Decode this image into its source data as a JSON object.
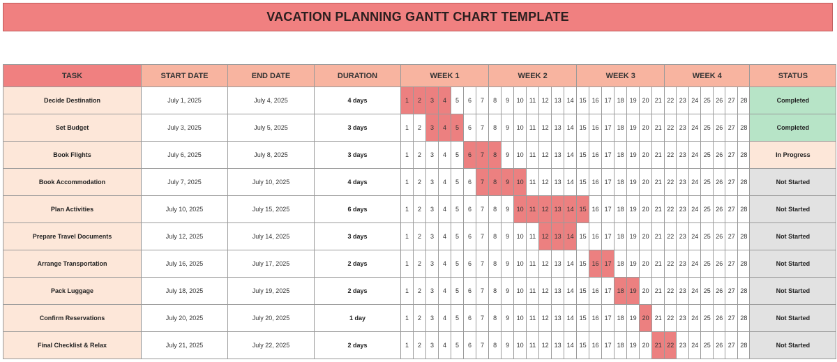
{
  "title": "VACATION PLANNING GANTT CHART TEMPLATE",
  "headers": {
    "task": "TASK",
    "start": "START DATE",
    "end": "END DATE",
    "duration": "DURATION",
    "weeks": [
      "WEEK 1",
      "WEEK 2",
      "WEEK 3",
      "WEEK 4"
    ],
    "status": "STATUS"
  },
  "colors": {
    "title_bg": "#f08080",
    "header_bg": "#f8b4a0",
    "bar": "#ec8080",
    "task_bg": "#fde7d9",
    "completed": "#b7e4c7",
    "in_progress": "#fde7d9",
    "not_started": "#e2e2e2"
  },
  "chart_data": {
    "type": "table",
    "title": "VACATION PLANNING GANTT CHART TEMPLATE",
    "days": [
      "1",
      "2",
      "3",
      "4",
      "5",
      "6",
      "7",
      "8",
      "9",
      "10",
      "11",
      "12",
      "13",
      "14",
      "15",
      "16",
      "17",
      "18",
      "19",
      "20",
      "21",
      "22",
      "23",
      "24",
      "25",
      "26",
      "27",
      "28"
    ],
    "tasks": [
      {
        "task": "Decide Destination",
        "start": "July 1, 2025",
        "end": "July 4, 2025",
        "duration": "4 days",
        "status": "Completed",
        "start_day": 1,
        "end_day": 4
      },
      {
        "task": "Set Budget",
        "start": "July 3, 2025",
        "end": "July 5, 2025",
        "duration": "3 days",
        "status": "Completed",
        "start_day": 3,
        "end_day": 5
      },
      {
        "task": "Book Flights",
        "start": "July 6, 2025",
        "end": "July 8, 2025",
        "duration": "3 days",
        "status": "In Progress",
        "start_day": 6,
        "end_day": 8
      },
      {
        "task": "Book Accommodation",
        "start": "July 7, 2025",
        "end": "July 10, 2025",
        "duration": "4 days",
        "status": "Not Started",
        "start_day": 7,
        "end_day": 10
      },
      {
        "task": "Plan Activities",
        "start": "July 10, 2025",
        "end": "July 15, 2025",
        "duration": "6 days",
        "status": "Not Started",
        "start_day": 10,
        "end_day": 15
      },
      {
        "task": "Prepare Travel Documents",
        "start": "July 12, 2025",
        "end": "July 14, 2025",
        "duration": "3 days",
        "status": "Not Started",
        "start_day": 12,
        "end_day": 14
      },
      {
        "task": "Arrange Transportation",
        "start": "July 16, 2025",
        "end": "July 17, 2025",
        "duration": "2 days",
        "status": "Not Started",
        "start_day": 16,
        "end_day": 17
      },
      {
        "task": "Pack Luggage",
        "start": "July 18, 2025",
        "end": "July 19, 2025",
        "duration": "2 days",
        "status": "Not Started",
        "start_day": 18,
        "end_day": 19
      },
      {
        "task": "Confirm Reservations",
        "start": "July 20, 2025",
        "end": "July 20, 2025",
        "duration": "1 day",
        "status": "Not Started",
        "start_day": 20,
        "end_day": 20
      },
      {
        "task": "Final Checklist & Relax",
        "start": "July 21, 2025",
        "end": "July 22, 2025",
        "duration": "2 days",
        "status": "Not Started",
        "start_day": 21,
        "end_day": 22
      }
    ]
  }
}
